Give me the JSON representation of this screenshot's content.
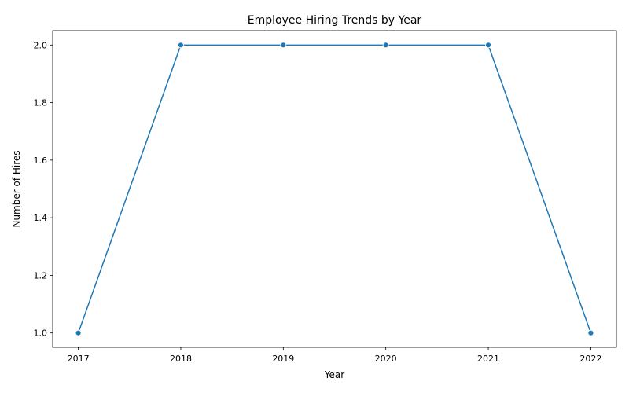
{
  "chart_data": {
    "type": "line",
    "title": "Employee Hiring Trends by Year",
    "xlabel": "Year",
    "ylabel": "Number of Hires",
    "x": [
      2017,
      2018,
      2019,
      2020,
      2021,
      2022
    ],
    "series": [
      {
        "values": [
          1,
          2,
          2,
          2,
          2,
          1
        ],
        "color": "#1f77b4",
        "marker": "circle"
      }
    ],
    "xticks": [
      "2017",
      "2018",
      "2019",
      "2020",
      "2021",
      "2022"
    ],
    "yticks": [
      "1.0",
      "1.2",
      "1.4",
      "1.6",
      "1.8",
      "2.0"
    ],
    "xlim": [
      2016.75,
      2022.25
    ],
    "ylim": [
      0.95,
      2.05
    ],
    "grid": false,
    "legend": "none"
  }
}
